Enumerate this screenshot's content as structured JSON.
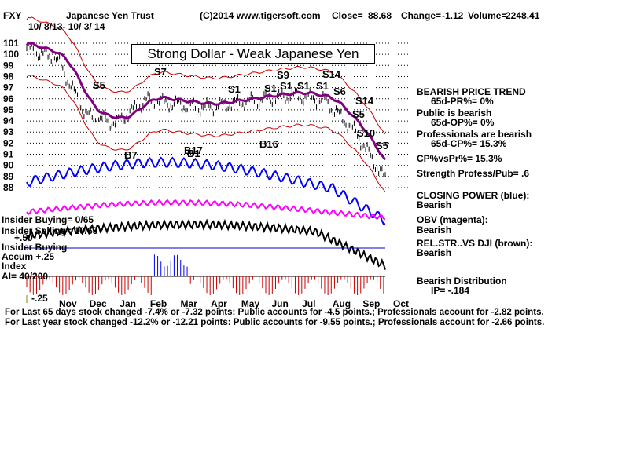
{
  "header": {
    "ticker": "FXY",
    "name": "Japanese Yen Trust",
    "copyright": "(C)2014 www.tigersoft.com",
    "close_label": "Close=",
    "close": "88.68",
    "change_label": "Change=",
    "change": "-1.12",
    "volume_label": "Volume=",
    "volume": "2248.41",
    "date_range": "10/ 8/13- 10/ 3/ 14"
  },
  "banner": "Strong Dollar - Weak Japanese Yen",
  "colors": {
    "price": "#000000",
    "bands": "#cc0000",
    "ma": "#800080",
    "closing_power": "#0000ff",
    "obv": "#ff00ff",
    "accum_bars": "#cc0000",
    "accum_bars_positive": "#0000ff",
    "grid": "#000000"
  },
  "right_panel": {
    "trend_title": "BEARISH PRICE TREND",
    "pr_line": "65d-PR%= 0%",
    "public_title": "Public is bearish",
    "op_line": "65d-OP%= 0%",
    "prof_title": "Professionals are bearish",
    "cp_line": "65d-CP%= 15.3%",
    "cpvspr": "CP%vsPr%= 15.3%",
    "strength": "Strength Profess/Pub= .6",
    "closing_power_title": "CLOSING POWER (blue):",
    "closing_power_value": "Bearish",
    "obv_title": "OBV (magenta):",
    "obv_value": "Bearish",
    "relstr_title": "REL.STR..VS DJI (brown):",
    "relstr_value": "Bearish",
    "distribution_title": "Bearish Distribution",
    "ip_line": "IP= -.184"
  },
  "left_panel": {
    "insider_buying": "Insider Buying= 0/65",
    "insider_selling": "Insider Selling= 10/65",
    "minus_50": "+.50",
    "insider_buying2": "Insider Buying",
    "accum_line": "Accum +.25",
    "index_label": "Index",
    "ai_label": "AI= 40/200",
    "minus_25": "-.25"
  },
  "footer": {
    "line1": "For Last 65 days stock changed -7.4% or -7.32 points:  Public accounts for -4.5 points.;  Professionals account for -2.82 points.",
    "line2": "For Last year stock changed -12.2% or -12.21 points:  Public accounts for -9.55 points.;  Professionals account for -2.66 points."
  },
  "signals": [
    {
      "label": "S7"
    },
    {
      "label": "S5"
    },
    {
      "label": "S1"
    },
    {
      "label": "S1"
    },
    {
      "label": "S1"
    },
    {
      "label": "S1"
    },
    {
      "label": "S1"
    },
    {
      "label": "S9"
    },
    {
      "label": "S14"
    },
    {
      "label": "S6"
    },
    {
      "label": "S14"
    },
    {
      "label": "S5"
    },
    {
      "label": "S10"
    },
    {
      "label": "S5"
    },
    {
      "label": "B7"
    },
    {
      "label": "B17"
    },
    {
      "label": "B1"
    },
    {
      "label": "B16"
    }
  ],
  "chart_data": {
    "type": "line",
    "title": "Japanese Yen Trust",
    "xlabel": "",
    "ylabel": "",
    "categories": [
      "Nov",
      "Dec",
      "Jan",
      "Feb",
      "Mar",
      "Apr",
      "May",
      "Jun",
      "Jul",
      "Aug",
      "Sep",
      "Oct"
    ],
    "y_ticks": [
      101,
      100,
      99,
      98,
      97,
      96,
      95,
      94,
      93,
      92,
      91,
      90,
      89,
      88
    ],
    "ylim": [
      88,
      101
    ],
    "grid": true,
    "price_series": {
      "name": "FXY",
      "x": [
        "Oct",
        "Nov",
        "Dec",
        "Jan",
        "Feb",
        "Mar",
        "Apr",
        "May",
        "Jun",
        "Jul",
        "Aug",
        "Sep",
        "Oct"
      ],
      "values": [
        100.5,
        99.6,
        94.5,
        93.8,
        95.9,
        95.5,
        95.2,
        95.6,
        96.0,
        96.3,
        95.8,
        93.0,
        88.7
      ]
    },
    "accumulation_index_ylim": [
      -0.25,
      0.5
    ]
  }
}
